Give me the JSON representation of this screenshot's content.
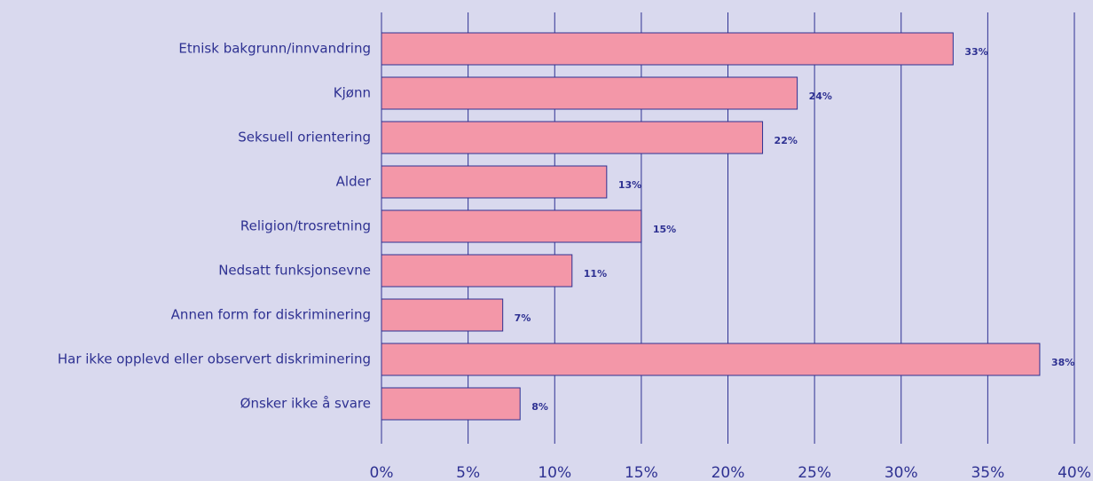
{
  "chart_data": {
    "type": "bar",
    "orientation": "horizontal",
    "categories": [
      "Etnisk bakgrunn/innvandring",
      "Kjønn",
      "Seksuell orientering",
      "Alder",
      "Religion/trosretning",
      "Nedsatt funksjonsevne",
      "Annen form for diskriminering",
      "Har ikke opplevd eller observert diskriminering",
      "Ønsker ikke å svare"
    ],
    "values": [
      33,
      24,
      22,
      13,
      15,
      11,
      7,
      38,
      8
    ],
    "value_labels": [
      "33%",
      "24%",
      "22%",
      "13%",
      "15%",
      "11%",
      "7%",
      "38%",
      "8%"
    ],
    "color": "#f397a8",
    "xlim": [
      0,
      40
    ],
    "xticks": [
      {
        "value": 0,
        "label": "0%"
      },
      {
        "value": 5,
        "label": "5%"
      },
      {
        "value": 10,
        "label": "10%"
      },
      {
        "value": 15,
        "label": "15%"
      },
      {
        "value": 20,
        "label": "20%"
      },
      {
        "value": 25,
        "label": "25%"
      },
      {
        "value": 30,
        "label": "30%"
      },
      {
        "value": 35,
        "label": "35%"
      },
      {
        "value": 40,
        "label": "40%"
      }
    ],
    "grid": true
  }
}
